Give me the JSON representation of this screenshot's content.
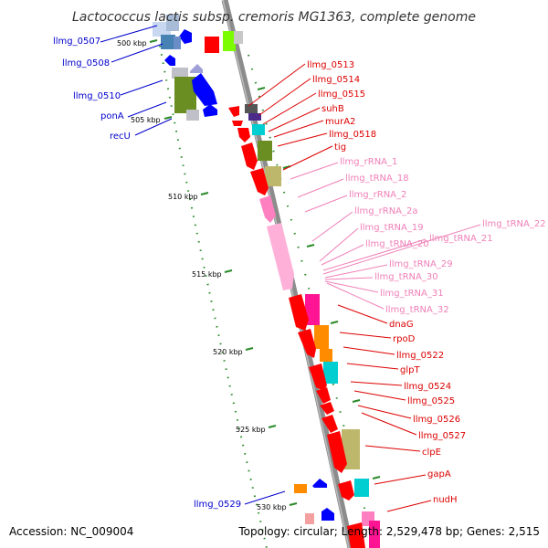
{
  "title": "Lactococcus lactis subsp. cremoris MG1363, complete genome",
  "footer": {
    "accession": "Accession: NC_009004",
    "summary": "Topology: circular; Length: 2,529,478 bp; Genes: 2,515"
  },
  "scale": {
    "unit": "kbp",
    "ticks": [
      "500 kbp",
      "505 kbp",
      "510 kbp",
      "515 kbp",
      "520 kbp",
      "525 kbp",
      "530 kbp"
    ]
  },
  "colors": {
    "backbone": "#999999",
    "reverse_label": "#0000cc",
    "forward_label": "#dd0000",
    "rna_label": "#f080b8",
    "tick": "#2a8a2a"
  },
  "gene_labels": {
    "reverse_strand": [
      "llmg_0507",
      "llmg_0508",
      "llmg_0510",
      "ponA",
      "recU",
      "llmg_0529"
    ],
    "forward_strand": [
      "llmg_0513",
      "llmg_0514",
      "llmg_0515",
      "suhB",
      "murA2",
      "llmg_0518",
      "tig",
      "dnaG",
      "rpoD",
      "llmg_0522",
      "glpT",
      "llmg_0524",
      "llmg_0525",
      "llmg_0526",
      "llmg_0527",
      "clpE",
      "gapA",
      "nudH"
    ],
    "rna": [
      "llmg_rRNA_1",
      "llmg_tRNA_18",
      "llmg_rRNA_2",
      "llmg_rRNA_2a",
      "llmg_tRNA_19",
      "llmg_tRNA_20",
      "llmg_tRNA_21",
      "llmg_tRNA_22",
      "llmg_tRNA_29",
      "llmg_tRNA_30",
      "llmg_tRNA_31",
      "llmg_tRNA_32"
    ]
  }
}
